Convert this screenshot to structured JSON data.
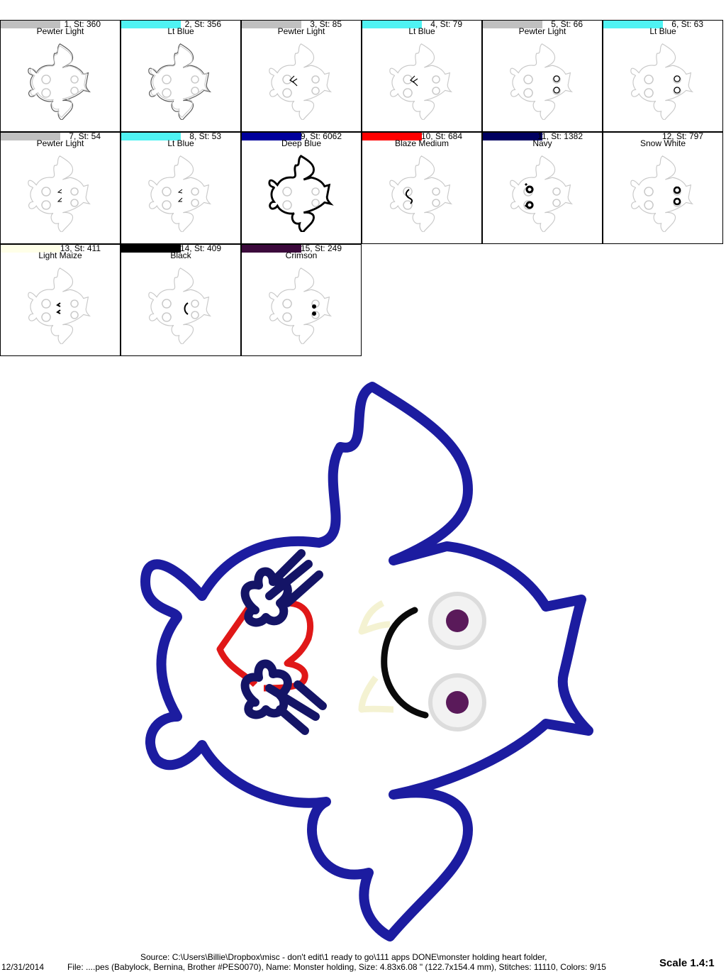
{
  "colors": [
    {
      "index_label": "1, St: 360",
      "name": "Pewter Light",
      "swatch": "#c0c0c0",
      "color": "#000000",
      "element": "body"
    },
    {
      "index_label": "2, St: 356",
      "name": "Lt Blue",
      "swatch": "#4ff3f3",
      "color": "#000000",
      "element": "body"
    },
    {
      "index_label": "3, St: 85",
      "name": "Pewter Light",
      "swatch": "#c0c0c0",
      "color": "#000000",
      "element": "mouth"
    },
    {
      "index_label": "4, St: 79",
      "name": "Lt Blue",
      "swatch": "#4ff3f3",
      "color": "#000000",
      "element": "mouth"
    },
    {
      "index_label": "5, St: 66",
      "name": "Pewter Light",
      "swatch": "#c0c0c0",
      "color": "#000000",
      "element": "eyes"
    },
    {
      "index_label": "6, St: 63",
      "name": "Lt Blue",
      "swatch": "#4ff3f3",
      "color": "#000000",
      "element": "eyes"
    },
    {
      "index_label": "7, St: 54",
      "name": "Pewter Light",
      "swatch": "#c0c0c0",
      "color": "#000000",
      "element": "fangs"
    },
    {
      "index_label": "8, St: 53",
      "name": "Lt Blue",
      "swatch": "#4ff3f3",
      "color": "#000000",
      "element": "fangs"
    },
    {
      "index_label": "9, St: 6062",
      "name": "Deep Blue",
      "swatch": "#00009c",
      "color": "#000000",
      "element": "body-bold"
    },
    {
      "index_label": "10, St: 684",
      "name": "Blaze Medium",
      "swatch": "#ff0000",
      "color": "#000000",
      "element": "heart"
    },
    {
      "index_label": "11, St: 1382",
      "name": "Navy",
      "swatch": "#000060",
      "color": "#000000",
      "element": "hands"
    },
    {
      "index_label": "12, St: 797",
      "name": "Snow White",
      "swatch": "#ffffff",
      "color": "#000000",
      "element": "eye-rings"
    },
    {
      "index_label": "13, St: 411",
      "name": "Light Maize",
      "swatch": "#ffffe8",
      "color": "#000000",
      "element": "fangs-fill"
    },
    {
      "index_label": "14, St: 409",
      "name": "Black",
      "swatch": "#000000",
      "color": "#000000",
      "element": "smile"
    },
    {
      "index_label": "15, St: 249",
      "name": "Crimson",
      "swatch": "#3c0a3c",
      "color": "#000000",
      "element": "pupils"
    }
  ],
  "design_colors": {
    "outline": "#1c1ca0",
    "heart": "#e01818",
    "hands": "#141466",
    "eye_ring": "#f2f2f2",
    "pupil": "#5a1a5a",
    "fang": "#f4f2d2",
    "smile": "#0a0a0a",
    "ghost": "#c8c8c8"
  },
  "footer": {
    "date": "12/31/2014",
    "source": "Source: C:\\Users\\Billie\\Dropbox\\misc - don't edit\\1 ready to go\\111 apps DONE\\monster holding heart folder,",
    "file": "File: ....pes (Babylock, Bernina, Brother #PES0070), Name: Monster holding, Size: 4.83x6.08 \" (122.7x154.4 mm), Stitches: 11110, Colors: 9/15",
    "scale": "Scale 1.4:1"
  }
}
